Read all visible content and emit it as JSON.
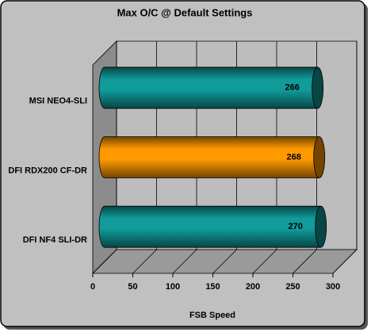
{
  "chart_data": {
    "type": "bar3d",
    "title": "Max O/C @ Default Settings",
    "x_label": "FSB Speed",
    "categories": [
      "MSI NEO4-SLI",
      "DFI RDX200 CF-DR",
      "DFI NF4 SLI-DR"
    ],
    "values": [
      266,
      268,
      270
    ],
    "colors": [
      "#119b9b",
      "#ff9900",
      "#119b9b"
    ],
    "xlim": [
      0,
      300
    ],
    "xticks": [
      0,
      50,
      100,
      150,
      200,
      250,
      300
    ],
    "grid": true
  }
}
